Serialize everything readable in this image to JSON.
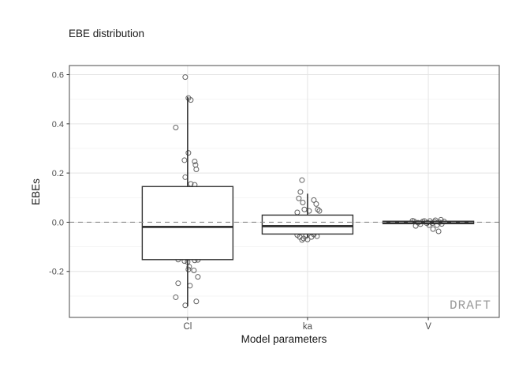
{
  "chart_data": {
    "type": "boxplot",
    "title": "EBE distribution",
    "xlabel": "Model parameters",
    "ylabel": "EBEs",
    "watermark": "DRAFT",
    "categories": [
      "Cl",
      "ka",
      "V"
    ],
    "ylim": [
      -0.387,
      0.637
    ],
    "yticks": [
      -0.2,
      0,
      0.2,
      0.4,
      0.6
    ],
    "ytick_labels": [
      "-0.2",
      "0.0",
      "0.2",
      "0.4",
      "0.6"
    ],
    "yticks_minor": [
      -0.3,
      -0.1,
      0.1,
      0.3,
      0.5
    ],
    "reference_line_y": 0,
    "grid": true,
    "legend": false,
    "boxes": [
      {
        "category": "Cl",
        "q1": -0.152,
        "median": -0.019,
        "q3": 0.145,
        "whisker_low": -0.342,
        "whisker_high": 0.51
      },
      {
        "category": "ka",
        "q1": -0.048,
        "median": -0.016,
        "q3": 0.029,
        "whisker_low": -0.062,
        "whisker_high": 0.116
      },
      {
        "category": "V",
        "q1": -0.006,
        "median": -0.001,
        "q3": 0.004,
        "whisker_low": -0.012,
        "whisker_high": 0.008
      }
    ],
    "points": {
      "Cl": [
        [
          -3,
          0.59
        ],
        [
          1,
          0.505
        ],
        [
          4,
          0.497
        ],
        [
          -15,
          0.385
        ],
        [
          1,
          0.282
        ],
        [
          -4,
          0.252
        ],
        [
          9,
          0.247
        ],
        [
          10,
          0.233
        ],
        [
          11,
          0.215
        ],
        [
          -3,
          0.183
        ],
        [
          4,
          0.156
        ],
        [
          9,
          0.152
        ],
        [
          -12,
          -0.152
        ],
        [
          -4,
          -0.158
        ],
        [
          0,
          -0.162
        ],
        [
          9,
          -0.155
        ],
        [
          13,
          -0.153
        ],
        [
          2,
          -0.181
        ],
        [
          1,
          -0.192
        ],
        [
          8,
          -0.196
        ],
        [
          13,
          -0.222
        ],
        [
          -12,
          -0.248
        ],
        [
          3,
          -0.258
        ],
        [
          -15,
          -0.305
        ],
        [
          11,
          -0.322
        ],
        [
          -3,
          -0.338
        ]
      ],
      "ka": [
        [
          -7,
          0.171
        ],
        [
          -9,
          0.123
        ],
        [
          -11,
          0.097
        ],
        [
          -6,
          0.08
        ],
        [
          8,
          0.09
        ],
        [
          11,
          0.074
        ],
        [
          -4,
          0.052
        ],
        [
          13,
          0.052
        ],
        [
          15,
          0.046
        ],
        [
          2,
          0.046
        ],
        [
          -13,
          0.04
        ],
        [
          -13,
          -0.052
        ],
        [
          -10,
          -0.06
        ],
        [
          -5,
          -0.066
        ],
        [
          -2,
          -0.056
        ],
        [
          5,
          -0.06
        ],
        [
          8,
          -0.05
        ],
        [
          12,
          -0.057
        ],
        [
          0,
          -0.07
        ],
        [
          -7,
          -0.072
        ]
      ],
      "V": [
        [
          -20,
          0.006
        ],
        [
          -18,
          0.004
        ],
        [
          -16,
          -0.015
        ],
        [
          -13,
          -0.002
        ],
        [
          -10,
          -0.008
        ],
        [
          -7,
          0.003
        ],
        [
          -5,
          0.005
        ],
        [
          -2,
          -0.004
        ],
        [
          1,
          -0.012
        ],
        [
          2,
          0.005
        ],
        [
          5,
          -0.004
        ],
        [
          6,
          -0.028
        ],
        [
          8,
          0.002
        ],
        [
          9,
          0.008
        ],
        [
          11,
          -0.012
        ],
        [
          13,
          -0.037
        ],
        [
          14,
          0.0
        ],
        [
          16,
          0.01
        ],
        [
          17,
          -0.007
        ],
        [
          20,
          0.003
        ]
      ]
    },
    "colors": {
      "box": "#333333",
      "point": "#474747",
      "grid_major": "#e4e4e4",
      "grid_minor": "#f3f3f3",
      "panel_border": "#5a5a5a",
      "tick": "#333333",
      "tick_label": "#4d4d4d",
      "ref_line": "#8a8a8a",
      "text": "#1a1a1a",
      "watermark": "#9a9a9a",
      "panel_bg": "#ffffff"
    }
  }
}
